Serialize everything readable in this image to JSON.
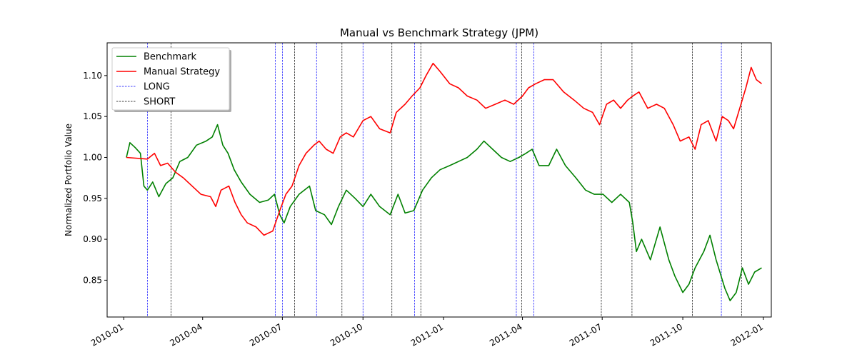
{
  "chart_data": {
    "type": "line",
    "title": "Manual vs Benchmark Strategy (JPM)",
    "xlabel": "",
    "ylabel": "Normalized Portfolio Value",
    "xlim": [
      "2009-12-13",
      "2012-01-10"
    ],
    "ylim": [
      0.805,
      1.14
    ],
    "x_ticks": [
      "2010-01",
      "2010-04",
      "2010-07",
      "2010-10",
      "2011-01",
      "2011-04",
      "2011-07",
      "2011-10",
      "2012-01"
    ],
    "y_ticks": [
      "0.85",
      "0.90",
      "0.95",
      "1.00",
      "1.05",
      "1.10"
    ],
    "legend_position": "top-left",
    "grid": false,
    "series": [
      {
        "name": "Benchmark",
        "color": "#008000",
        "points": [
          [
            "2010-01-04",
            1.0
          ],
          [
            "2010-01-08",
            1.018
          ],
          [
            "2010-01-14",
            1.012
          ],
          [
            "2010-01-20",
            1.005
          ],
          [
            "2010-01-24",
            0.965
          ],
          [
            "2010-01-28",
            0.96
          ],
          [
            "2010-02-03",
            0.97
          ],
          [
            "2010-02-10",
            0.952
          ],
          [
            "2010-02-18",
            0.968
          ],
          [
            "2010-02-26",
            0.975
          ],
          [
            "2010-03-06",
            0.995
          ],
          [
            "2010-03-15",
            1.0
          ],
          [
            "2010-03-25",
            1.015
          ],
          [
            "2010-04-05",
            1.02
          ],
          [
            "2010-04-12",
            1.025
          ],
          [
            "2010-04-18",
            1.04
          ],
          [
            "2010-04-24",
            1.015
          ],
          [
            "2010-04-30",
            1.005
          ],
          [
            "2010-05-07",
            0.985
          ],
          [
            "2010-05-15",
            0.97
          ],
          [
            "2010-05-25",
            0.955
          ],
          [
            "2010-06-05",
            0.945
          ],
          [
            "2010-06-15",
            0.948
          ],
          [
            "2010-06-22",
            0.955
          ],
          [
            "2010-06-28",
            0.93
          ],
          [
            "2010-07-03",
            0.92
          ],
          [
            "2010-07-10",
            0.94
          ],
          [
            "2010-07-20",
            0.955
          ],
          [
            "2010-08-01",
            0.965
          ],
          [
            "2010-08-08",
            0.935
          ],
          [
            "2010-08-18",
            0.93
          ],
          [
            "2010-08-26",
            0.918
          ],
          [
            "2010-09-03",
            0.94
          ],
          [
            "2010-09-12",
            0.96
          ],
          [
            "2010-09-22",
            0.95
          ],
          [
            "2010-10-01",
            0.94
          ],
          [
            "2010-10-10",
            0.955
          ],
          [
            "2010-10-20",
            0.94
          ],
          [
            "2010-11-01",
            0.93
          ],
          [
            "2010-11-10",
            0.955
          ],
          [
            "2010-11-18",
            0.932
          ],
          [
            "2010-11-28",
            0.935
          ],
          [
            "2010-12-08",
            0.96
          ],
          [
            "2010-12-18",
            0.975
          ],
          [
            "2010-12-28",
            0.985
          ],
          [
            "2011-01-08",
            0.99
          ],
          [
            "2011-01-18",
            0.995
          ],
          [
            "2011-01-28",
            1.0
          ],
          [
            "2011-02-08",
            1.01
          ],
          [
            "2011-02-16",
            1.02
          ],
          [
            "2011-02-26",
            1.01
          ],
          [
            "2011-03-08",
            1.0
          ],
          [
            "2011-03-18",
            0.995
          ],
          [
            "2011-03-28",
            1.0
          ],
          [
            "2011-04-05",
            1.005
          ],
          [
            "2011-04-12",
            1.01
          ],
          [
            "2011-04-20",
            0.99
          ],
          [
            "2011-05-01",
            0.99
          ],
          [
            "2011-05-10",
            1.01
          ],
          [
            "2011-05-20",
            0.99
          ],
          [
            "2011-06-01",
            0.975
          ],
          [
            "2011-06-12",
            0.96
          ],
          [
            "2011-06-22",
            0.955
          ],
          [
            "2011-07-02",
            0.955
          ],
          [
            "2011-07-12",
            0.945
          ],
          [
            "2011-07-22",
            0.955
          ],
          [
            "2011-08-01",
            0.945
          ],
          [
            "2011-08-05",
            0.92
          ],
          [
            "2011-08-09",
            0.885
          ],
          [
            "2011-08-15",
            0.9
          ],
          [
            "2011-08-25",
            0.875
          ],
          [
            "2011-09-05",
            0.915
          ],
          [
            "2011-09-15",
            0.875
          ],
          [
            "2011-09-22",
            0.855
          ],
          [
            "2011-10-01",
            0.835
          ],
          [
            "2011-10-08",
            0.845
          ],
          [
            "2011-10-15",
            0.865
          ],
          [
            "2011-10-25",
            0.885
          ],
          [
            "2011-11-01",
            0.905
          ],
          [
            "2011-11-08",
            0.875
          ],
          [
            "2011-11-18",
            0.84
          ],
          [
            "2011-11-24",
            0.825
          ],
          [
            "2011-12-01",
            0.835
          ],
          [
            "2011-12-08",
            0.865
          ],
          [
            "2011-12-15",
            0.845
          ],
          [
            "2011-12-22",
            0.86
          ],
          [
            "2011-12-30",
            0.865
          ]
        ]
      },
      {
        "name": "Manual Strategy",
        "color": "#ff0000",
        "points": [
          [
            "2010-01-04",
            1.0
          ],
          [
            "2010-01-28",
            0.998
          ],
          [
            "2010-02-05",
            1.005
          ],
          [
            "2010-02-12",
            0.99
          ],
          [
            "2010-02-20",
            0.993
          ],
          [
            "2010-03-01",
            0.982
          ],
          [
            "2010-03-10",
            0.975
          ],
          [
            "2010-03-20",
            0.965
          ],
          [
            "2010-03-30",
            0.955
          ],
          [
            "2010-04-10",
            0.952
          ],
          [
            "2010-04-16",
            0.94
          ],
          [
            "2010-04-22",
            0.96
          ],
          [
            "2010-05-01",
            0.965
          ],
          [
            "2010-05-08",
            0.945
          ],
          [
            "2010-05-15",
            0.93
          ],
          [
            "2010-05-22",
            0.92
          ],
          [
            "2010-06-01",
            0.915
          ],
          [
            "2010-06-10",
            0.905
          ],
          [
            "2010-06-20",
            0.91
          ],
          [
            "2010-06-28",
            0.935
          ],
          [
            "2010-07-05",
            0.955
          ],
          [
            "2010-07-12",
            0.965
          ],
          [
            "2010-07-20",
            0.99
          ],
          [
            "2010-07-28",
            1.005
          ],
          [
            "2010-08-06",
            1.015
          ],
          [
            "2010-08-12",
            1.02
          ],
          [
            "2010-08-20",
            1.01
          ],
          [
            "2010-08-28",
            1.005
          ],
          [
            "2010-09-05",
            1.025
          ],
          [
            "2010-09-12",
            1.03
          ],
          [
            "2010-09-20",
            1.025
          ],
          [
            "2010-10-01",
            1.045
          ],
          [
            "2010-10-10",
            1.05
          ],
          [
            "2010-10-20",
            1.035
          ],
          [
            "2010-11-01",
            1.03
          ],
          [
            "2010-11-08",
            1.055
          ],
          [
            "2010-11-18",
            1.065
          ],
          [
            "2010-11-26",
            1.075
          ],
          [
            "2010-12-05",
            1.085
          ],
          [
            "2010-12-12",
            1.1
          ],
          [
            "2010-12-20",
            1.115
          ],
          [
            "2010-12-28",
            1.105
          ],
          [
            "2011-01-08",
            1.09
          ],
          [
            "2011-01-18",
            1.085
          ],
          [
            "2011-01-28",
            1.075
          ],
          [
            "2011-02-08",
            1.07
          ],
          [
            "2011-02-18",
            1.06
          ],
          [
            "2011-03-01",
            1.065
          ],
          [
            "2011-03-12",
            1.07
          ],
          [
            "2011-03-22",
            1.065
          ],
          [
            "2011-04-01",
            1.075
          ],
          [
            "2011-04-08",
            1.085
          ],
          [
            "2011-04-16",
            1.09
          ],
          [
            "2011-04-26",
            1.095
          ],
          [
            "2011-05-06",
            1.095
          ],
          [
            "2011-05-18",
            1.08
          ],
          [
            "2011-05-30",
            1.07
          ],
          [
            "2011-06-10",
            1.06
          ],
          [
            "2011-06-20",
            1.055
          ],
          [
            "2011-06-28",
            1.04
          ],
          [
            "2011-07-06",
            1.065
          ],
          [
            "2011-07-14",
            1.07
          ],
          [
            "2011-07-22",
            1.06
          ],
          [
            "2011-07-30",
            1.07
          ],
          [
            "2011-08-05",
            1.075
          ],
          [
            "2011-08-12",
            1.08
          ],
          [
            "2011-08-22",
            1.06
          ],
          [
            "2011-09-01",
            1.065
          ],
          [
            "2011-09-10",
            1.06
          ],
          [
            "2011-09-20",
            1.04
          ],
          [
            "2011-09-28",
            1.02
          ],
          [
            "2011-10-08",
            1.025
          ],
          [
            "2011-10-15",
            1.01
          ],
          [
            "2011-10-22",
            1.04
          ],
          [
            "2011-10-30",
            1.045
          ],
          [
            "2011-11-08",
            1.02
          ],
          [
            "2011-11-15",
            1.05
          ],
          [
            "2011-11-22",
            1.045
          ],
          [
            "2011-11-28",
            1.035
          ],
          [
            "2011-12-05",
            1.06
          ],
          [
            "2011-12-12",
            1.085
          ],
          [
            "2011-12-18",
            1.11
          ],
          [
            "2011-12-24",
            1.095
          ],
          [
            "2011-12-30",
            1.09
          ]
        ]
      },
      {
        "name": "LONG",
        "color": "#0000ff",
        "style": "dashed-vertical",
        "dates": [
          "2010-01-28",
          "2010-06-23",
          "2010-07-01",
          "2010-08-09",
          "2010-10-01",
          "2010-11-29",
          "2011-03-25",
          "2011-04-14",
          "2011-11-14"
        ]
      },
      {
        "name": "SHORT",
        "color": "#000000",
        "style": "dashed-vertical",
        "dates": [
          "2010-02-24",
          "2010-07-15",
          "2010-09-07",
          "2010-11-03",
          "2010-12-06",
          "2011-03-31",
          "2011-06-30",
          "2011-08-04",
          "2011-10-12",
          "2011-12-07"
        ]
      }
    ]
  }
}
